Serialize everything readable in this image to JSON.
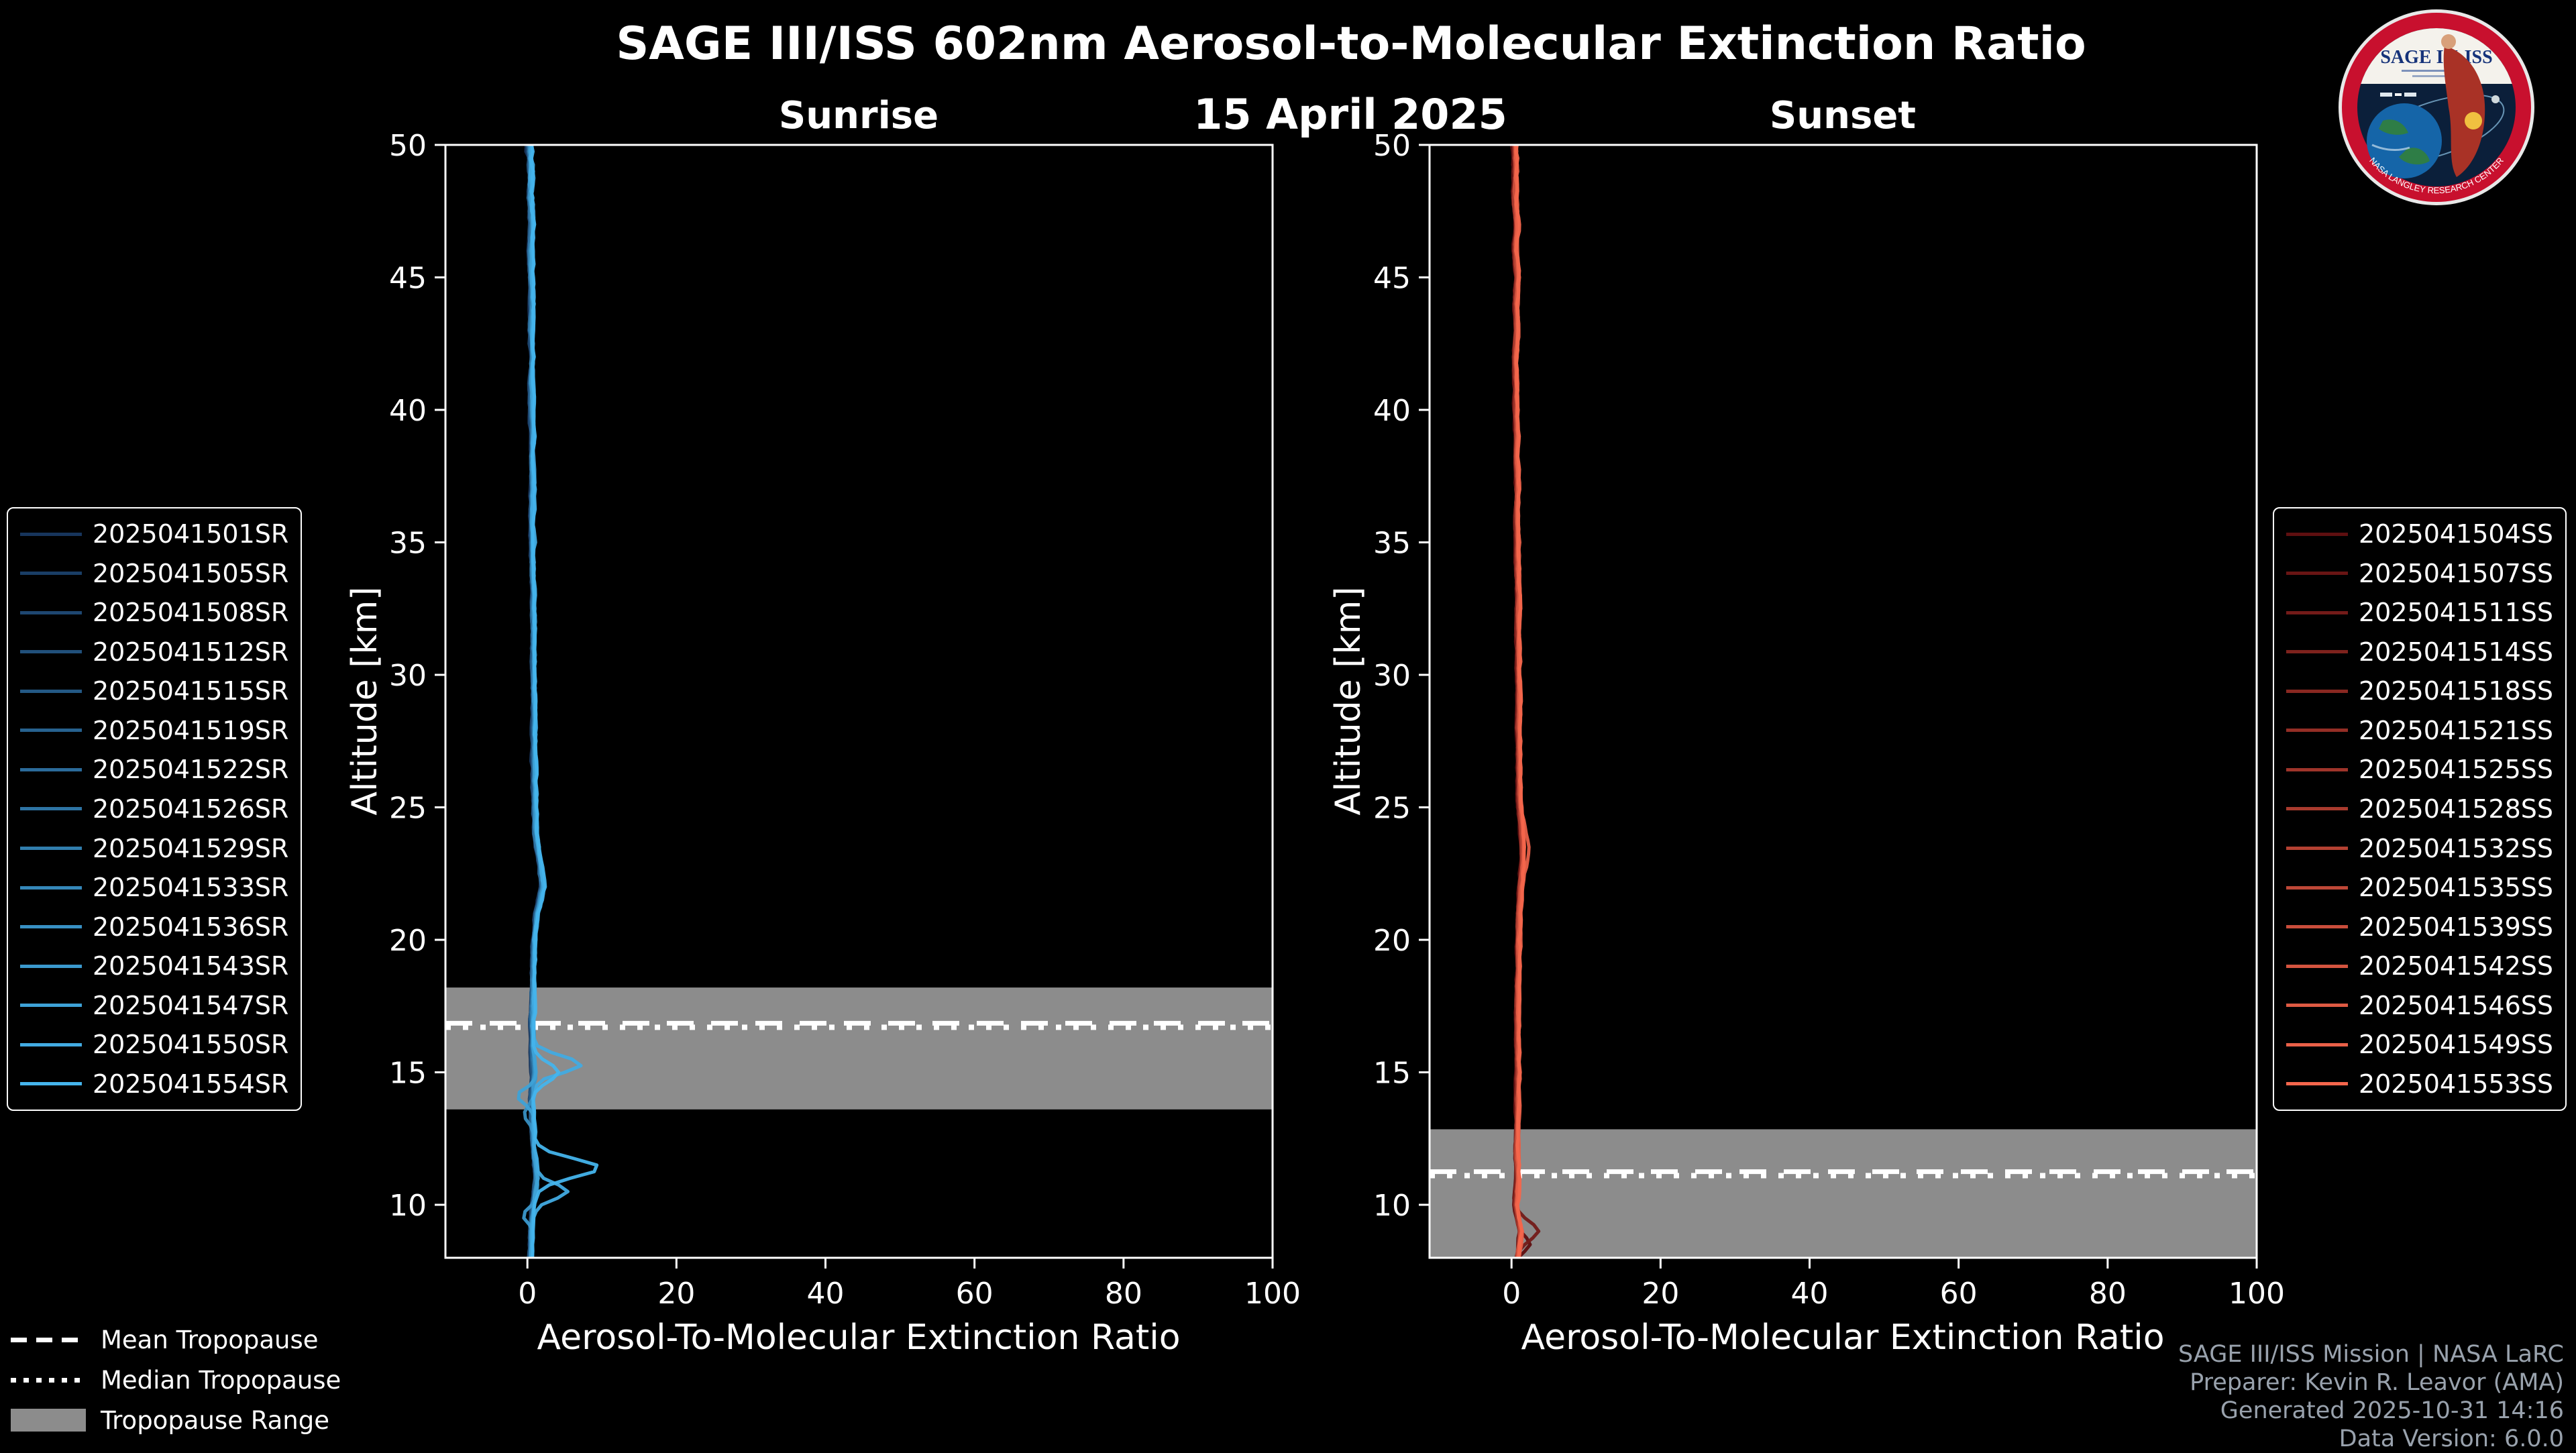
{
  "title": "SAGE III/ISS 602nm Aerosol-to-Molecular Extinction Ratio",
  "date": "15 April 2025",
  "logo": {
    "title": "SAGE III·ISS",
    "ring_text": "NASA LANGLEY RESEARCH CENTER"
  },
  "tropopause_legend": {
    "mean": "Mean Tropopause",
    "median": "Median Tropopause",
    "range": "Tropopause Range"
  },
  "credits": {
    "lines": [
      "SAGE III/ISS Mission | NASA LaRC",
      "Preparer: Kevin R. Leavor (AMA)",
      "Generated 2025-10-31 14:16",
      "Data Version: 6.0.0"
    ]
  },
  "chart_data": [
    {
      "type": "line",
      "panel": "sunrise",
      "title": "Sunrise",
      "xlabel": "Aerosol-To-Molecular Extinction Ratio",
      "ylabel": "Altitude [km]",
      "xlim": [
        -11,
        100
      ],
      "ylim": [
        8,
        50
      ],
      "xticks": [
        0,
        20,
        40,
        60,
        80,
        100
      ],
      "yticks": [
        10,
        15,
        20,
        25,
        30,
        35,
        40,
        45,
        50
      ],
      "grid": false,
      "legend_position": "left-outside",
      "tropopause": {
        "range_km": [
          13.6,
          18.2
        ],
        "mean_km": 16.85,
        "median_km": 16.7,
        "band_color": "#8c8c8c"
      },
      "profile_altitude_km": [
        50,
        49,
        48,
        47,
        46,
        45,
        44,
        43,
        42,
        41,
        40,
        39,
        38,
        37,
        36,
        35,
        34,
        33,
        32,
        31,
        30,
        29,
        28,
        27,
        26,
        25,
        24,
        23,
        22,
        21,
        20,
        19,
        18,
        17,
        16,
        15,
        14,
        13,
        12,
        11,
        10,
        9,
        8
      ],
      "profile_ratio": [
        0.3,
        0.5,
        0.4,
        0.6,
        0.4,
        0.5,
        0.6,
        0.5,
        0.6,
        0.5,
        0.6,
        0.7,
        0.6,
        0.7,
        0.6,
        0.7,
        0.7,
        0.8,
        0.8,
        0.8,
        0.8,
        0.9,
        0.9,
        0.9,
        0.9,
        1.0,
        1.1,
        1.6,
        2.0,
        1.3,
        0.9,
        0.8,
        0.7,
        0.6,
        0.7,
        0.9,
        0.6,
        0.7,
        0.9,
        1.2,
        0.8,
        0.5,
        0.4
      ],
      "noise_amplitude": 0.3,
      "series": [
        {
          "name": "2025041501SR",
          "color": "#17355c"
        },
        {
          "name": "2025041505SR",
          "color": "#1a3e66"
        },
        {
          "name": "2025041508SR",
          "color": "#1e4771"
        },
        {
          "name": "2025041512SR",
          "color": "#21507b"
        },
        {
          "name": "2025041515SR",
          "color": "#245985"
        },
        {
          "name": "2025041519SR",
          "color": "#27628f"
        },
        {
          "name": "2025041522SR",
          "color": "#2b6b9a"
        },
        {
          "name": "2025041526SR",
          "color": "#2e74a4"
        },
        {
          "name": "2025041529SR",
          "color": "#317eae"
        },
        {
          "name": "2025041533SR",
          "color": "#3587b9"
        },
        {
          "name": "2025041536SR",
          "color": "#3890c3"
        },
        {
          "name": "2025041543SR",
          "color": "#3b99cd"
        },
        {
          "name": "2025041547SR",
          "color": "#3ea2d7"
        },
        {
          "name": "2025041550SR",
          "color": "#42abe2"
        },
        {
          "name": "2025041554SR",
          "color": "#45b4ec"
        }
      ],
      "features": [
        {
          "series_index": 13,
          "altitude_km": 15.3,
          "peak_ratio": 6.2,
          "width_km": 0.45
        },
        {
          "series_index": 14,
          "altitude_km": 15.0,
          "peak_ratio": 3.0,
          "width_km": 0.5
        },
        {
          "series_index": 12,
          "altitude_km": 14.1,
          "peak_ratio": -2.2,
          "width_km": 0.4
        },
        {
          "series_index": 14,
          "altitude_km": 11.4,
          "peak_ratio": 8.3,
          "width_km": 0.5
        },
        {
          "series_index": 13,
          "altitude_km": 10.5,
          "peak_ratio": 4.2,
          "width_km": 0.4
        },
        {
          "series_index": 11,
          "altitude_km": 9.6,
          "peak_ratio": -1.6,
          "width_km": 0.35
        },
        {
          "series_index": 10,
          "altitude_km": 13.4,
          "peak_ratio": -1.2,
          "width_km": 0.4
        }
      ]
    },
    {
      "type": "line",
      "panel": "sunset",
      "title": "Sunset",
      "xlabel": "Aerosol-To-Molecular Extinction Ratio",
      "ylabel": "Altitude [km]",
      "xlim": [
        -11,
        100
      ],
      "ylim": [
        8,
        50
      ],
      "xticks": [
        0,
        20,
        40,
        60,
        80,
        100
      ],
      "yticks": [
        10,
        15,
        20,
        25,
        30,
        35,
        40,
        45,
        50
      ],
      "grid": false,
      "legend_position": "right-outside",
      "tropopause": {
        "range_km": [
          8.0,
          12.85
        ],
        "mean_km": 11.25,
        "median_km": 11.1,
        "band_color": "#8c8c8c"
      },
      "profile_altitude_km": [
        50,
        49,
        48,
        47,
        46,
        45,
        44,
        43,
        42,
        41,
        40,
        39,
        38,
        37,
        36,
        35,
        34,
        33,
        32,
        31,
        30,
        29,
        28,
        27,
        26,
        25,
        24,
        23,
        22,
        21,
        20,
        19,
        18,
        17,
        16,
        15,
        14,
        13,
        12,
        11,
        10,
        9,
        8
      ],
      "profile_ratio": [
        0.4,
        0.6,
        0.5,
        0.7,
        0.5,
        0.8,
        0.6,
        0.7,
        0.5,
        0.6,
        0.6,
        0.7,
        0.7,
        0.8,
        0.7,
        0.8,
        0.8,
        0.9,
        0.8,
        0.9,
        0.9,
        1.0,
        0.9,
        1.0,
        1.0,
        1.1,
        1.4,
        1.5,
        1.2,
        1.0,
        0.9,
        0.9,
        0.8,
        0.8,
        0.8,
        0.9,
        0.8,
        0.8,
        0.7,
        0.8,
        0.6,
        1.2,
        0.8
      ],
      "noise_amplitude": 0.25,
      "series": [
        {
          "name": "2025041504SS",
          "color": "#5e0f10"
        },
        {
          "name": "2025041507SS",
          "color": "#691514"
        },
        {
          "name": "2025041511SS",
          "color": "#731b19"
        },
        {
          "name": "2025041514SS",
          "color": "#7e221d"
        },
        {
          "name": "2025041518SS",
          "color": "#892821"
        },
        {
          "name": "2025041521SS",
          "color": "#942e25"
        },
        {
          "name": "2025041525SS",
          "color": "#9e342a"
        },
        {
          "name": "2025041528SS",
          "color": "#a93b2e"
        },
        {
          "name": "2025041532SS",
          "color": "#b44132"
        },
        {
          "name": "2025041535SS",
          "color": "#be4737"
        },
        {
          "name": "2025041539SS",
          "color": "#c94d3b"
        },
        {
          "name": "2025041542SS",
          "color": "#d4543f"
        },
        {
          "name": "2025041546SS",
          "color": "#de5a43"
        },
        {
          "name": "2025041549SS",
          "color": "#e96048"
        },
        {
          "name": "2025041553SS",
          "color": "#f4664c"
        }
      ],
      "features": [
        {
          "series_index": 2,
          "altitude_km": 9.0,
          "peak_ratio": 2.6,
          "width_km": 0.5
        },
        {
          "series_index": 0,
          "altitude_km": 8.5,
          "peak_ratio": 1.6,
          "width_km": 0.4
        },
        {
          "series_index": 13,
          "altitude_km": 23.4,
          "peak_ratio": 0.8,
          "width_km": 0.8
        }
      ]
    }
  ]
}
